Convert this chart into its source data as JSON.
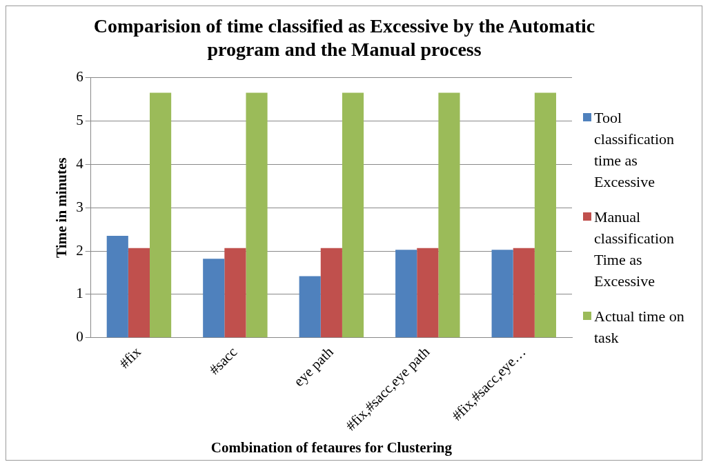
{
  "chart_data": {
    "type": "bar",
    "title": "Comparision of time classified as Excessive by the Automatic program and the Manual process",
    "xlabel": "Combination of fetaures for Clustering",
    "ylabel": "Time in minutes",
    "categories": [
      "#fix",
      "#sacc",
      "eye path",
      "#fix,#sacc,eye path",
      "#fix,#sacc,eye…"
    ],
    "series": [
      {
        "name": "Tool classification time as Excessive",
        "color": "#4f81bd",
        "values": [
          2.35,
          1.82,
          1.42,
          2.03,
          2.03
        ]
      },
      {
        "name": "Manual classification Time as Excessive",
        "color": "#c0504d",
        "values": [
          2.07,
          2.07,
          2.07,
          2.07,
          2.07
        ]
      },
      {
        "name": "Actual time on task",
        "color": "#9bbb59",
        "values": [
          5.65,
          5.65,
          5.65,
          5.65,
          5.65
        ]
      }
    ],
    "ylim": [
      0,
      6
    ],
    "yticks": [
      0,
      1,
      2,
      3,
      4,
      5,
      6
    ],
    "grid": "y",
    "legend": "right"
  }
}
